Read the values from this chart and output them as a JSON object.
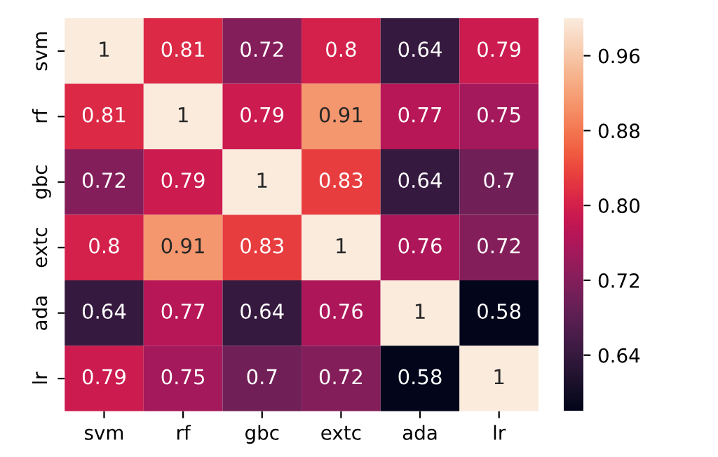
{
  "chart_data": {
    "type": "heatmap",
    "categories": [
      "svm",
      "rf",
      "gbc",
      "extc",
      "ada",
      "lr"
    ],
    "y_categories": [
      "svm",
      "rf",
      "gbc",
      "extc",
      "ada",
      "lr"
    ],
    "cells": [
      [
        1,
        0.81,
        0.72,
        0.8,
        0.64,
        0.79
      ],
      [
        0.81,
        1,
        0.79,
        0.91,
        0.77,
        0.75
      ],
      [
        0.72,
        0.79,
        1,
        0.83,
        0.64,
        0.7
      ],
      [
        0.8,
        0.91,
        0.83,
        1,
        0.76,
        0.72
      ],
      [
        0.64,
        0.77,
        0.64,
        0.76,
        1,
        0.58
      ],
      [
        0.79,
        0.75,
        0.7,
        0.72,
        0.58,
        1
      ]
    ],
    "clim": [
      0.58,
      1
    ],
    "cticks": [
      {
        "value": 0.64,
        "label": "0.64"
      },
      {
        "value": 0.72,
        "label": "0.72"
      },
      {
        "value": 0.8,
        "label": "0.80"
      },
      {
        "value": 0.88,
        "label": "0.88"
      },
      {
        "value": 0.96,
        "label": "0.96"
      }
    ],
    "data_labels": true
  }
}
